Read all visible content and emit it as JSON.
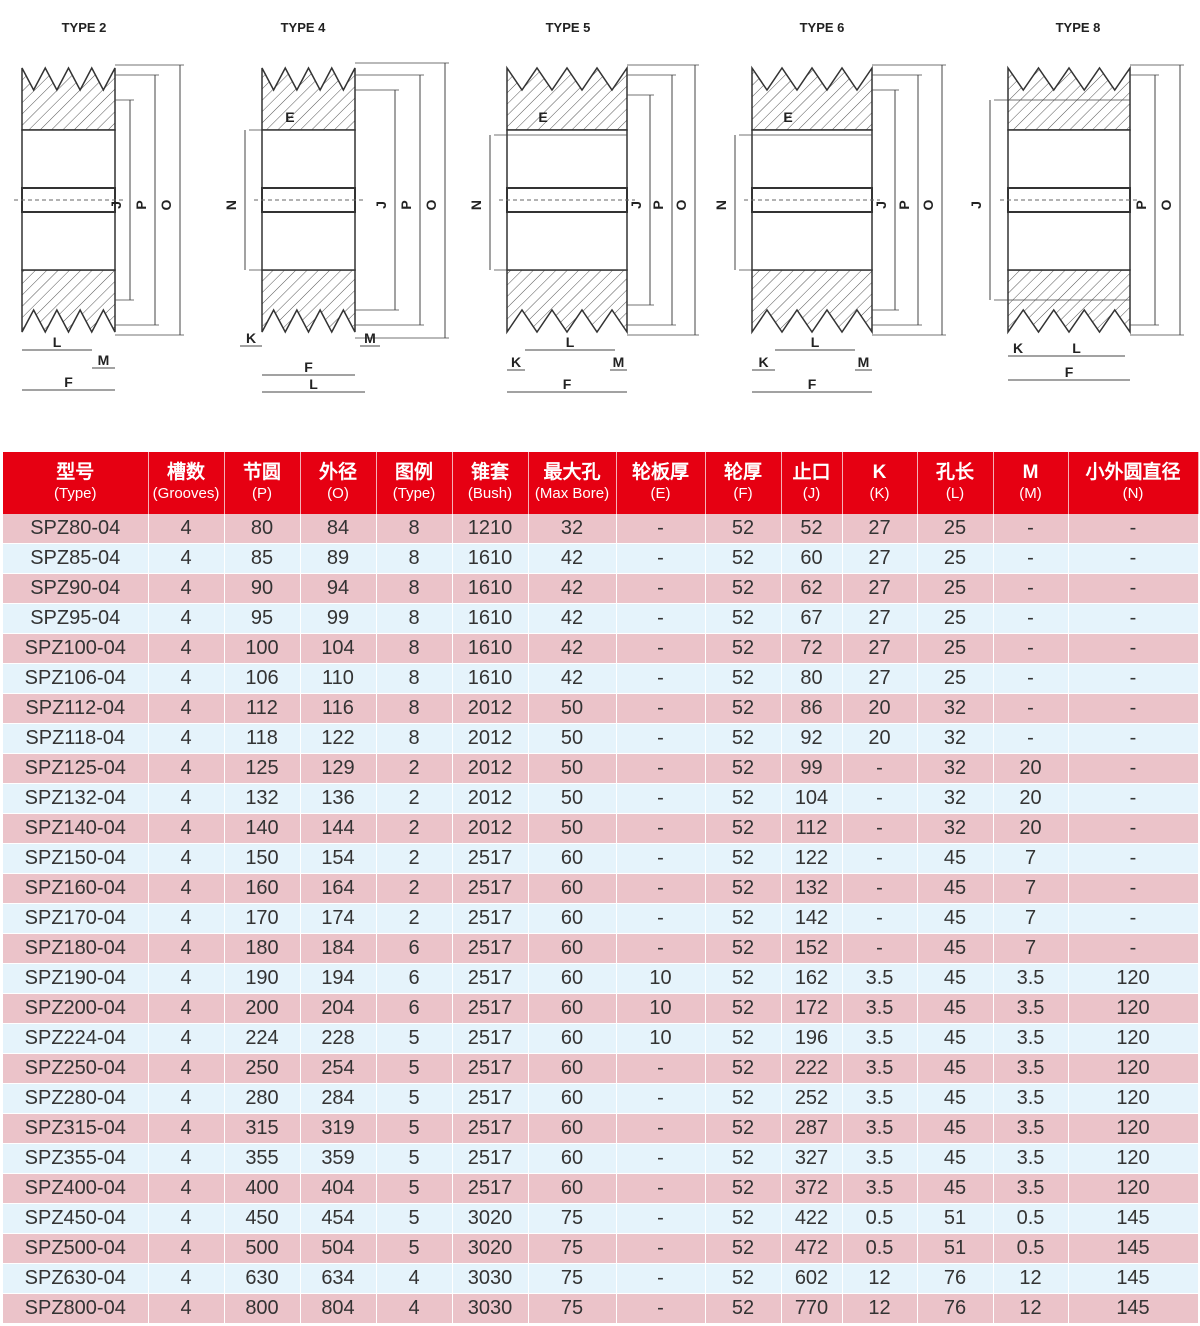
{
  "drawings": [
    {
      "title": "TYPE 2",
      "labels": [
        "L",
        "M",
        "F",
        "J",
        "P",
        "O"
      ]
    },
    {
      "title": "TYPE 4",
      "labels": [
        "E",
        "N",
        "J",
        "P",
        "O",
        "K",
        "M",
        "F",
        "L"
      ]
    },
    {
      "title": "TYPE 5",
      "labels": [
        "E",
        "N",
        "J",
        "P",
        "O",
        "K",
        "L",
        "M",
        "F"
      ]
    },
    {
      "title": "TYPE 6",
      "labels": [
        "E",
        "N",
        "J",
        "P",
        "O",
        "K",
        "L",
        "M",
        "F"
      ]
    },
    {
      "title": "TYPE 8",
      "labels": [
        "J",
        "P",
        "O",
        "K",
        "L",
        "F"
      ]
    }
  ],
  "colors": {
    "header": "#e60012",
    "row_odd": "#ebc3c9",
    "row_even": "#e5f3fb"
  },
  "table": {
    "headers": [
      {
        "cn": "型号",
        "en": "(Type)"
      },
      {
        "cn": "槽数",
        "en": "(Grooves)"
      },
      {
        "cn": "节圆",
        "en": "(P)"
      },
      {
        "cn": "外径",
        "en": "(O)"
      },
      {
        "cn": "图例",
        "en": "(Type)"
      },
      {
        "cn": "锥套",
        "en": "(Bush)"
      },
      {
        "cn": "最大孔",
        "en": "(Max Bore)"
      },
      {
        "cn": "轮板厚",
        "en": "(E)"
      },
      {
        "cn": "轮厚",
        "en": "(F)"
      },
      {
        "cn": "止口",
        "en": "(J)"
      },
      {
        "cn": "K",
        "en": "(K)"
      },
      {
        "cn": "孔长",
        "en": "(L)"
      },
      {
        "cn": "M",
        "en": "(M)"
      },
      {
        "cn": "小外圆直径",
        "en": "(N)"
      }
    ],
    "rows": [
      [
        "SPZ80-04",
        "4",
        "80",
        "84",
        "8",
        "1210",
        "32",
        "-",
        "52",
        "52",
        "27",
        "25",
        "-",
        "-"
      ],
      [
        "SPZ85-04",
        "4",
        "85",
        "89",
        "8",
        "1610",
        "42",
        "-",
        "52",
        "60",
        "27",
        "25",
        "-",
        "-"
      ],
      [
        "SPZ90-04",
        "4",
        "90",
        "94",
        "8",
        "1610",
        "42",
        "-",
        "52",
        "62",
        "27",
        "25",
        "-",
        "-"
      ],
      [
        "SPZ95-04",
        "4",
        "95",
        "99",
        "8",
        "1610",
        "42",
        "-",
        "52",
        "67",
        "27",
        "25",
        "-",
        "-"
      ],
      [
        "SPZ100-04",
        "4",
        "100",
        "104",
        "8",
        "1610",
        "42",
        "-",
        "52",
        "72",
        "27",
        "25",
        "-",
        "-"
      ],
      [
        "SPZ106-04",
        "4",
        "106",
        "110",
        "8",
        "1610",
        "42",
        "-",
        "52",
        "80",
        "27",
        "25",
        "-",
        "-"
      ],
      [
        "SPZ112-04",
        "4",
        "112",
        "116",
        "8",
        "2012",
        "50",
        "-",
        "52",
        "86",
        "20",
        "32",
        "-",
        "-"
      ],
      [
        "SPZ118-04",
        "4",
        "118",
        "122",
        "8",
        "2012",
        "50",
        "-",
        "52",
        "92",
        "20",
        "32",
        "-",
        "-"
      ],
      [
        "SPZ125-04",
        "4",
        "125",
        "129",
        "2",
        "2012",
        "50",
        "-",
        "52",
        "99",
        "-",
        "32",
        "20",
        "-"
      ],
      [
        "SPZ132-04",
        "4",
        "132",
        "136",
        "2",
        "2012",
        "50",
        "-",
        "52",
        "104",
        "-",
        "32",
        "20",
        "-"
      ],
      [
        "SPZ140-04",
        "4",
        "140",
        "144",
        "2",
        "2012",
        "50",
        "-",
        "52",
        "112",
        "-",
        "32",
        "20",
        "-"
      ],
      [
        "SPZ150-04",
        "4",
        "150",
        "154",
        "2",
        "2517",
        "60",
        "-",
        "52",
        "122",
        "-",
        "45",
        "7",
        "-"
      ],
      [
        "SPZ160-04",
        "4",
        "160",
        "164",
        "2",
        "2517",
        "60",
        "-",
        "52",
        "132",
        "-",
        "45",
        "7",
        "-"
      ],
      [
        "SPZ170-04",
        "4",
        "170",
        "174",
        "2",
        "2517",
        "60",
        "-",
        "52",
        "142",
        "-",
        "45",
        "7",
        "-"
      ],
      [
        "SPZ180-04",
        "4",
        "180",
        "184",
        "6",
        "2517",
        "60",
        "-",
        "52",
        "152",
        "-",
        "45",
        "7",
        "-"
      ],
      [
        "SPZ190-04",
        "4",
        "190",
        "194",
        "6",
        "2517",
        "60",
        "10",
        "52",
        "162",
        "3.5",
        "45",
        "3.5",
        "120"
      ],
      [
        "SPZ200-04",
        "4",
        "200",
        "204",
        "6",
        "2517",
        "60",
        "10",
        "52",
        "172",
        "3.5",
        "45",
        "3.5",
        "120"
      ],
      [
        "SPZ224-04",
        "4",
        "224",
        "228",
        "5",
        "2517",
        "60",
        "10",
        "52",
        "196",
        "3.5",
        "45",
        "3.5",
        "120"
      ],
      [
        "SPZ250-04",
        "4",
        "250",
        "254",
        "5",
        "2517",
        "60",
        "-",
        "52",
        "222",
        "3.5",
        "45",
        "3.5",
        "120"
      ],
      [
        "SPZ280-04",
        "4",
        "280",
        "284",
        "5",
        "2517",
        "60",
        "-",
        "52",
        "252",
        "3.5",
        "45",
        "3.5",
        "120"
      ],
      [
        "SPZ315-04",
        "4",
        "315",
        "319",
        "5",
        "2517",
        "60",
        "-",
        "52",
        "287",
        "3.5",
        "45",
        "3.5",
        "120"
      ],
      [
        "SPZ355-04",
        "4",
        "355",
        "359",
        "5",
        "2517",
        "60",
        "-",
        "52",
        "327",
        "3.5",
        "45",
        "3.5",
        "120"
      ],
      [
        "SPZ400-04",
        "4",
        "400",
        "404",
        "5",
        "2517",
        "60",
        "-",
        "52",
        "372",
        "3.5",
        "45",
        "3.5",
        "120"
      ],
      [
        "SPZ450-04",
        "4",
        "450",
        "454",
        "5",
        "3020",
        "75",
        "-",
        "52",
        "422",
        "0.5",
        "51",
        "0.5",
        "145"
      ],
      [
        "SPZ500-04",
        "4",
        "500",
        "504",
        "5",
        "3020",
        "75",
        "-",
        "52",
        "472",
        "0.5",
        "51",
        "0.5",
        "145"
      ],
      [
        "SPZ630-04",
        "4",
        "630",
        "634",
        "4",
        "3030",
        "75",
        "-",
        "52",
        "602",
        "12",
        "76",
        "12",
        "145"
      ],
      [
        "SPZ800-04",
        "4",
        "800",
        "804",
        "4",
        "3030",
        "75",
        "-",
        "52",
        "770",
        "12",
        "76",
        "12",
        "145"
      ]
    ]
  }
}
